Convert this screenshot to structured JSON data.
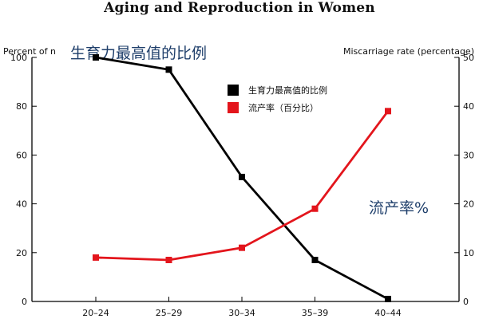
{
  "chart_data": {
    "type": "line",
    "title": "Aging and Reproduction in Women",
    "categories": [
      "20–24",
      "25–29",
      "30–34",
      "35–39",
      "40–44"
    ],
    "ylabel_left": "Percent of n",
    "ylabel_right": "Miscarriage rate (percentage)",
    "ylim_left": [
      0,
      100
    ],
    "ylim_right": [
      0,
      50
    ],
    "yticks_left": [
      "0",
      "20",
      "40",
      "60",
      "80",
      "100"
    ],
    "yticks_right": [
      "0",
      "10",
      "20",
      "30",
      "40",
      "50"
    ],
    "series": [
      {
        "name": "生育力最高值的比例",
        "axis": "left",
        "color": "#000000",
        "values": [
          100,
          95,
          51,
          17,
          1
        ]
      },
      {
        "name": "流产率（百分比）",
        "axis": "right",
        "color": "#e3151c",
        "values": [
          9,
          8.5,
          11,
          19,
          39
        ]
      }
    ],
    "annotations": {
      "top": "生育力最高值的比例",
      "right": "流产率%"
    },
    "legend_position": "top-center",
    "grid": false
  }
}
